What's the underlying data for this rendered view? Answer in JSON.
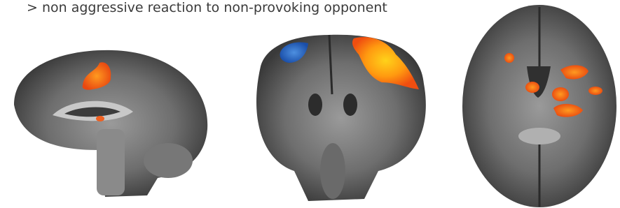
{
  "caption": "> non aggressive reaction to non-provoking opponent"
}
